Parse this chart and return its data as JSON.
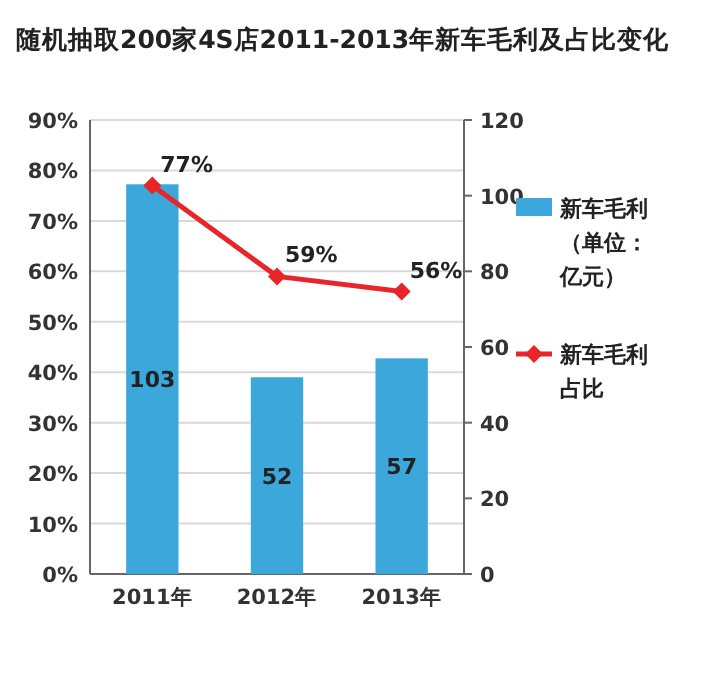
{
  "chart_data": {
    "type": "bar",
    "title": "随机抽取200家4S店2011-2013年新车毛利及占比变化",
    "categories": [
      "2011年",
      "2012年",
      "2013年"
    ],
    "series": [
      {
        "name": "新车毛利（单位：亿元）",
        "axis": "y2",
        "color": "#3ba7db",
        "values": [
          103,
          52,
          57
        ],
        "value_labels": [
          "103",
          "52",
          "57"
        ]
      },
      {
        "name": "新车毛利占比",
        "type": "line",
        "axis": "y",
        "color": "#e8262a",
        "marker": "diamond",
        "values": [
          77,
          59,
          56
        ],
        "value_labels": [
          "77%",
          "59%",
          "56%"
        ]
      }
    ],
    "ylim": [
      0,
      90
    ],
    "yticks": [
      {
        "value": 0,
        "label": "0%"
      },
      {
        "value": 10,
        "label": "10%"
      },
      {
        "value": 20,
        "label": "20%"
      },
      {
        "value": 30,
        "label": "30%"
      },
      {
        "value": 40,
        "label": "40%"
      },
      {
        "value": 50,
        "label": "50%"
      },
      {
        "value": 60,
        "label": "60%"
      },
      {
        "value": 70,
        "label": "70%"
      },
      {
        "value": 80,
        "label": "80%"
      },
      {
        "value": 90,
        "label": "90%"
      }
    ],
    "y2lim": [
      0,
      120
    ],
    "y2ticks": [
      0,
      20,
      40,
      60,
      80,
      100,
      120
    ],
    "grid": "y",
    "legend": "right"
  }
}
